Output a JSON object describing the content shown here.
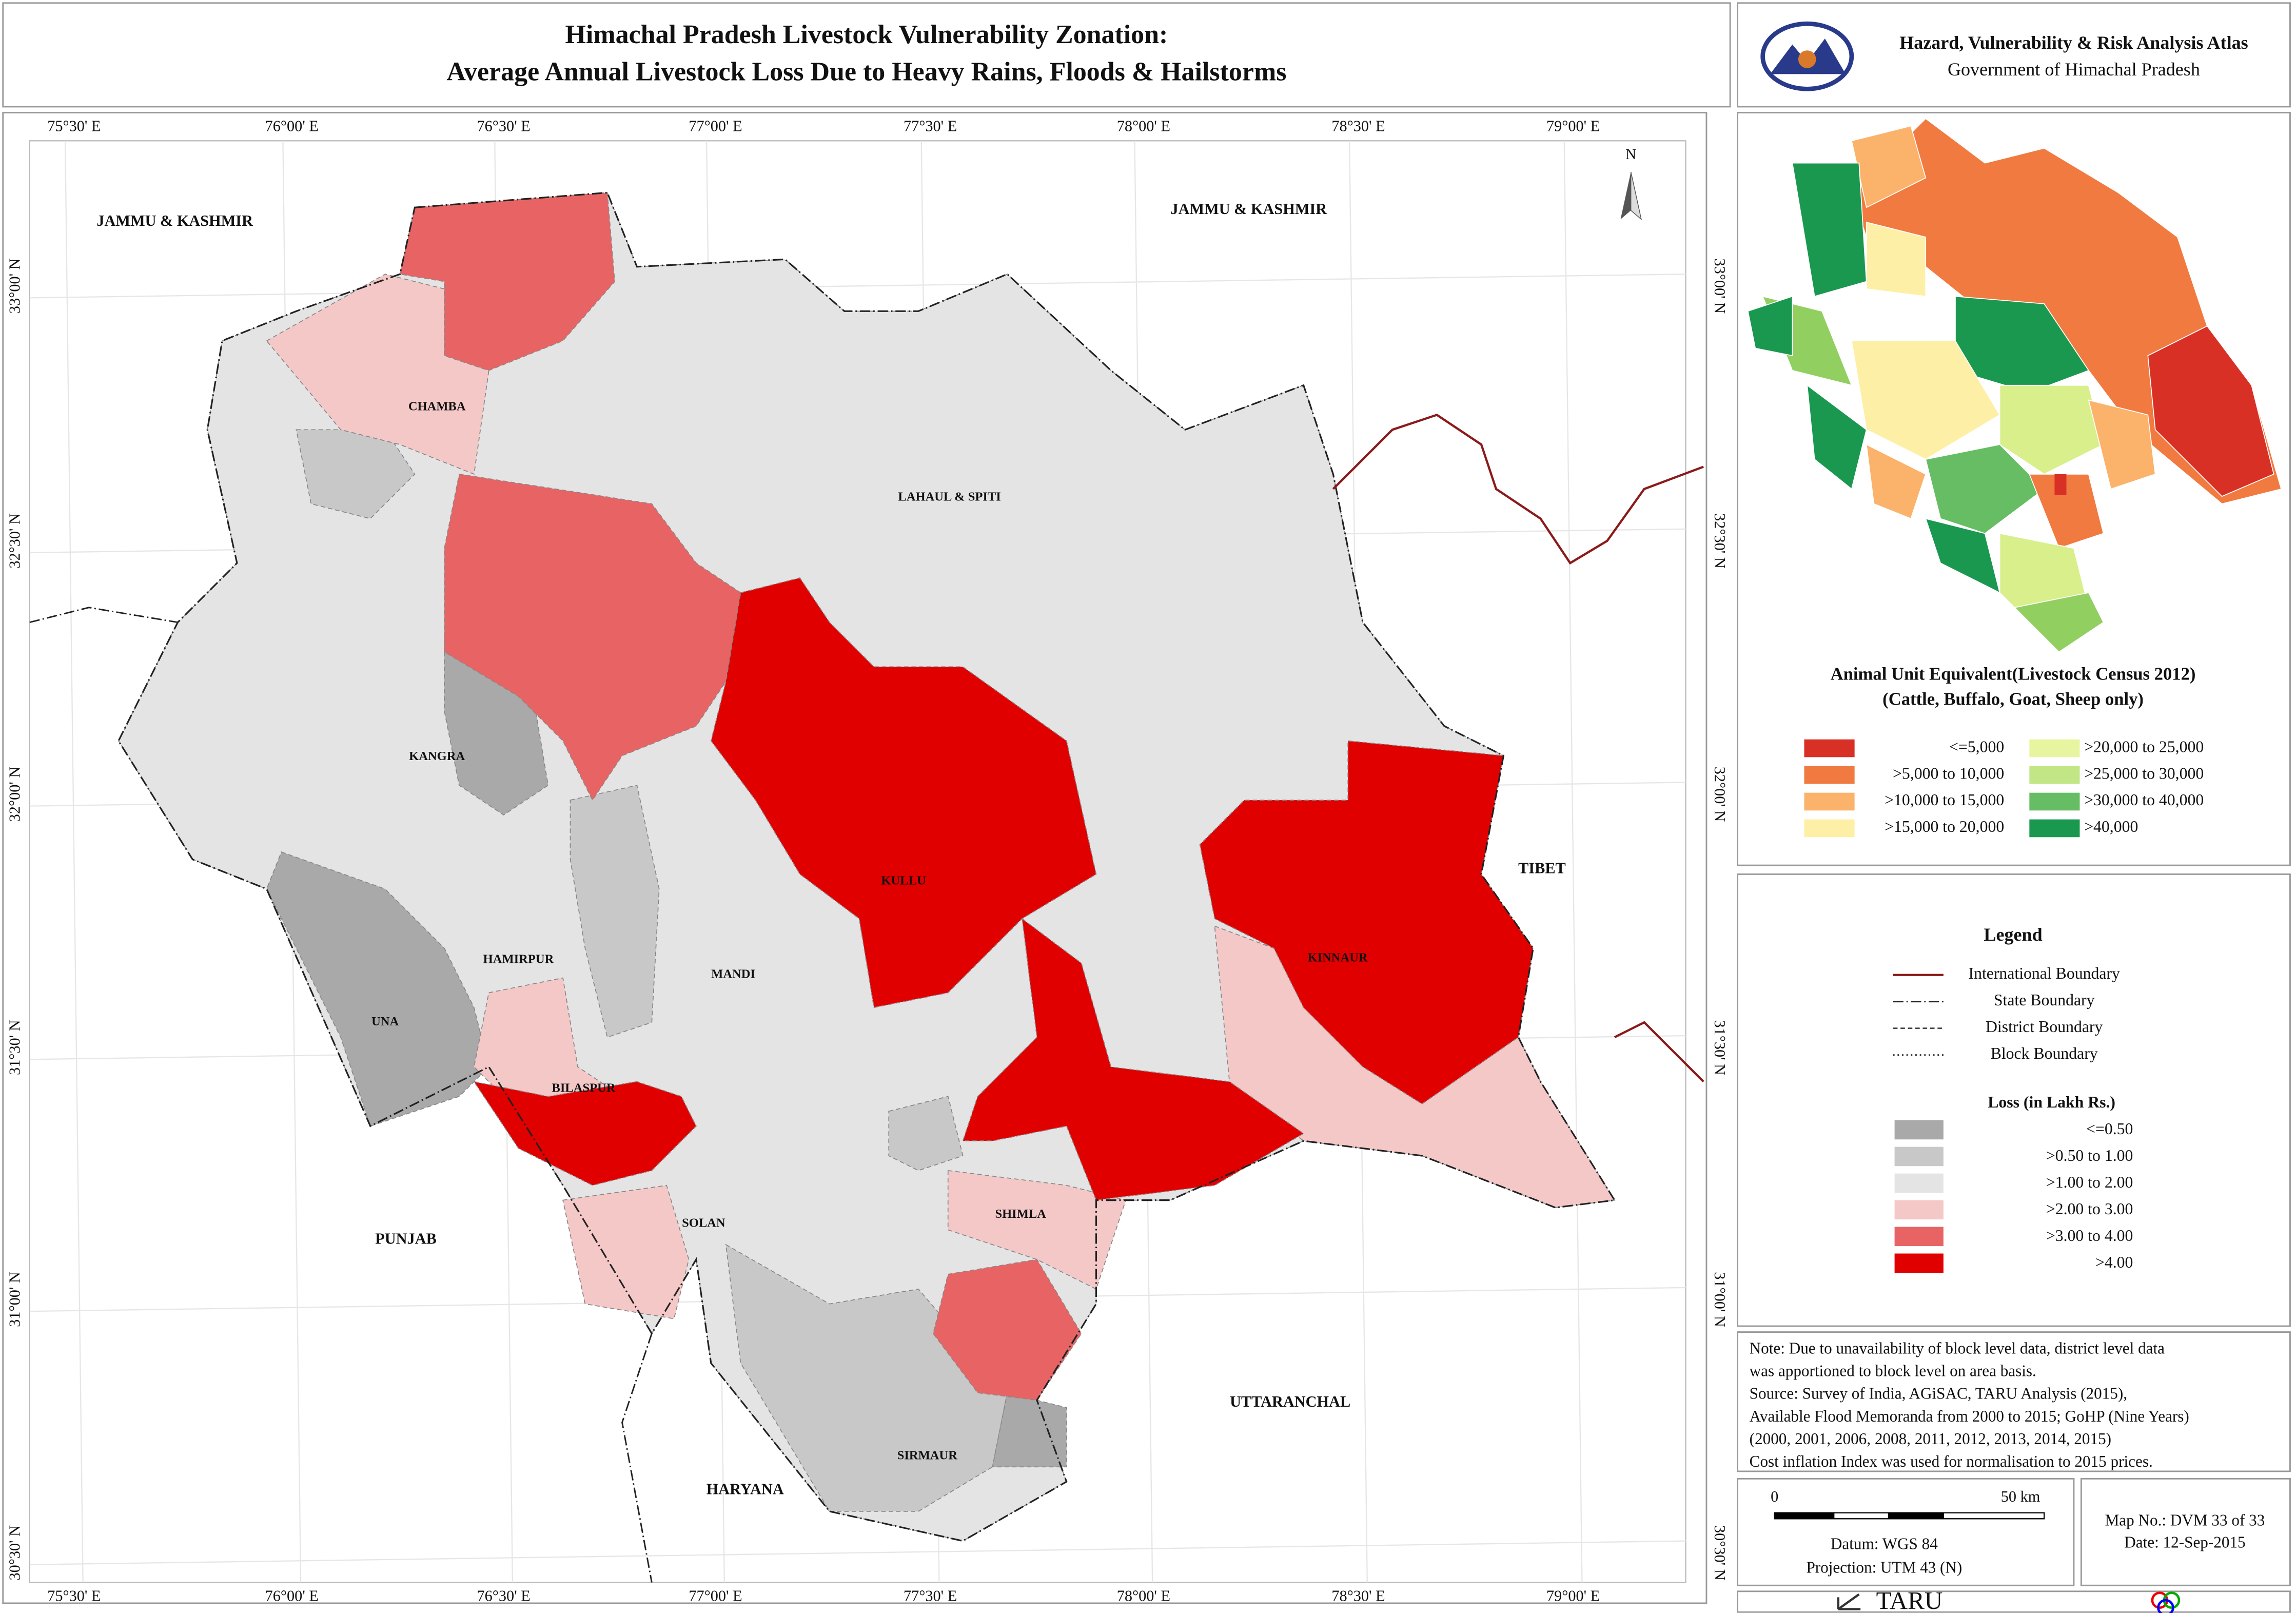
{
  "header": {
    "title_lines": [
      "Himachal Pradesh Livestock Vulnerability Zonation:",
      "Average Annual Livestock Loss Due to Heavy Rains, Floods & Hailstorms"
    ]
  },
  "atlas": {
    "title": "Hazard, Vulnerability & Risk Analysis Atlas",
    "subtitle": "Government of Himachal Pradesh"
  },
  "map": {
    "north": "N",
    "longitudes": [
      "75°30' E",
      "76°00' E",
      "76°30' E",
      "77°00' E",
      "77°30' E",
      "78°00' E",
      "78°30' E",
      "79°00' E"
    ],
    "latitudes": [
      "33°00' N",
      "32°30' N",
      "32°00' N",
      "31°30' N",
      "31°00' N",
      "30°30' N"
    ],
    "neighbours": [
      "JAMMU & KASHMIR",
      "JAMMU & KASHMIR",
      "TIBET",
      "PUNJAB",
      "HARYANA",
      "UTTARANCHAL"
    ],
    "districts": [
      "CHAMBA",
      "LAHAUL & SPITI",
      "KANGRA",
      "KULLU",
      "KINNAUR",
      "HAMIRPUR",
      "MANDI",
      "UNA",
      "BILASPUR",
      "SOLAN",
      "SHIMLA",
      "SIRMAUR"
    ]
  },
  "inset": {
    "title_lines": [
      "Animal Unit Equivalent(Livestock Census 2012)",
      "(Cattle, Buffalo, Goat, Sheep only)"
    ],
    "classes": [
      "<=5,000",
      ">5,000 to 10,000",
      ">10,000 to 15,000",
      ">15,000 to 20,000",
      ">20,000 to 25,000",
      ">25,000 to 30,000",
      ">30,000 to 40,000",
      ">40,000"
    ]
  },
  "legend": {
    "title": "Legend",
    "lines": [
      "International Boundary",
      "State Boundary",
      "District Boundary",
      "Block Boundary"
    ],
    "loss_title": "Loss (in Lakh Rs.)",
    "loss_classes": [
      "<=0.50",
      ">0.50 to 1.00",
      ">1.00 to 2.00",
      ">2.00 to 3.00",
      ">3.00 to 4.00",
      ">4.00"
    ]
  },
  "note": {
    "lines": [
      "Note: Due to unavailability of block level data, district level data",
      "was apportioned to block level on area basis.",
      "Source: Survey of India, AGiSAC, TARU Analysis (2015),",
      "Available Flood Memoranda from 2000 to 2015; GoHP (Nine Years)",
      "(2000, 2001, 2006, 2008, 2011, 2012, 2013, 2014, 2015)",
      "Cost inflation Index was used for normalisation to 2015 prices."
    ]
  },
  "scale": {
    "start": "0",
    "end": "50 km",
    "datum": "Datum: WGS 84",
    "projection": "Projection: UTM 43 (N)"
  },
  "map_info": {
    "number": "Map No.: DVM 33 of 33",
    "date": "Date: 12-Sep-2015"
  },
  "footer": {
    "brand": "TARU"
  }
}
